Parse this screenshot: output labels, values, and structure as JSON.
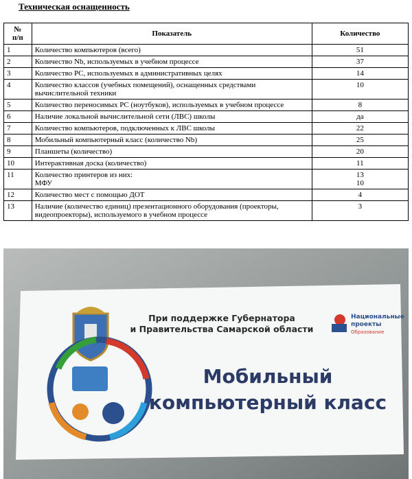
{
  "header": {
    "title": "Техническая оснащенность"
  },
  "table": {
    "columns": [
      "№\nп/п",
      "Показатель",
      "Количество"
    ],
    "rows": [
      [
        "1",
        "Количество компьютеров (всего)",
        "51"
      ],
      [
        "2",
        "Количество Nb, используемых в учебном процессе",
        "37"
      ],
      [
        "3",
        "Количество PC, используемых в административных целях",
        "14"
      ],
      [
        "4",
        "Количество классов (учебных помещений), оснащенных средствами вычислительной техники",
        "10"
      ],
      [
        "5",
        "Количество переносимых PC (ноутбуков), используемых в учебном процессе",
        "8"
      ],
      [
        "6",
        "Наличие локальной вычислительной сети (ЛВС) школы",
        "да"
      ],
      [
        "7",
        "Количество компьютеров, подключенных к ЛВС школы",
        "22"
      ],
      [
        "8",
        "Мобильный компьютерный класс (количество Nb)",
        "25"
      ],
      [
        "9",
        "Планшеты (количество)",
        "20"
      ],
      [
        "10",
        "Интерактивная доска (количество)",
        "11"
      ],
      [
        "11",
        "Количество принтеров из них:\nМФУ",
        "13\n10"
      ],
      [
        "12",
        "Количество мест с помощью ДОТ",
        "4"
      ],
      [
        "13",
        "Наличие (количество единиц) презентационного оборудования (проекторы, видеопроекторы), используемого в учебном процессе",
        "3"
      ]
    ]
  },
  "photo": {
    "support": [
      "При поддержке Губернатора",
      "и Правительства Самарской области"
    ],
    "brand": [
      "Национальные",
      "проекты"
    ],
    "brand_sub": "Образование",
    "headline": [
      "Мобильный",
      "компьютерный класс"
    ]
  }
}
